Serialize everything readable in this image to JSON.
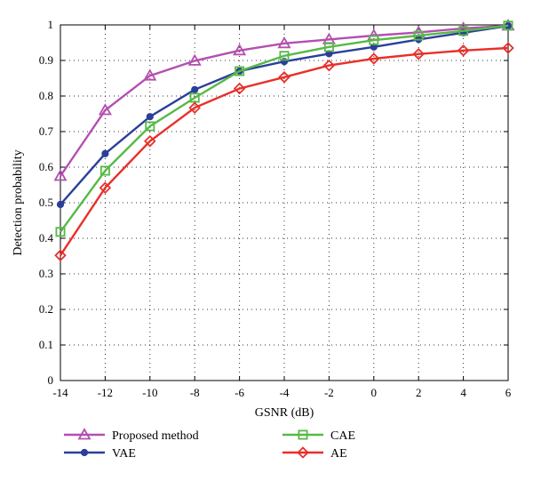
{
  "chart_data": {
    "type": "line",
    "xlabel": "GSNR (dB)",
    "ylabel": "Detection probability",
    "xlim": [
      -14,
      6
    ],
    "ylim": [
      0,
      1
    ],
    "x_ticks": [
      "-14",
      "-12",
      "-10",
      "-8",
      "-6",
      "-4",
      "-2",
      "0",
      "2",
      "4",
      "6"
    ],
    "y_ticks": [
      "0",
      "0.1",
      "0.2",
      "0.3",
      "0.4",
      "0.5",
      "0.6",
      "0.7",
      "0.8",
      "0.9",
      "1"
    ],
    "grid": true,
    "legend_position": "bottom",
    "x": [
      -14,
      -12,
      -10,
      -8,
      -6,
      -4,
      -2,
      0,
      2,
      4,
      6
    ],
    "series": [
      {
        "name": "Proposed method",
        "marker": "triangle",
        "color": "#b44fb0",
        "values": [
          0.575,
          0.76,
          0.857,
          0.899,
          0.928,
          0.948,
          0.959,
          0.97,
          0.979,
          0.99,
          0.998
        ]
      },
      {
        "name": "VAE",
        "marker": "circle",
        "color": "#2b3f9a",
        "values": [
          0.495,
          0.638,
          0.742,
          0.818,
          0.87,
          0.897,
          0.919,
          0.938,
          0.959,
          0.978,
          0.997
        ]
      },
      {
        "name": "CAE",
        "marker": "square",
        "color": "#57b947",
        "values": [
          0.418,
          0.59,
          0.715,
          0.795,
          0.87,
          0.913,
          0.938,
          0.957,
          0.97,
          0.983,
          0.998
        ]
      },
      {
        "name": "AE",
        "marker": "diamond",
        "color": "#e8302a",
        "values": [
          0.352,
          0.542,
          0.673,
          0.767,
          0.821,
          0.853,
          0.886,
          0.905,
          0.918,
          0.928,
          0.935
        ]
      }
    ]
  }
}
